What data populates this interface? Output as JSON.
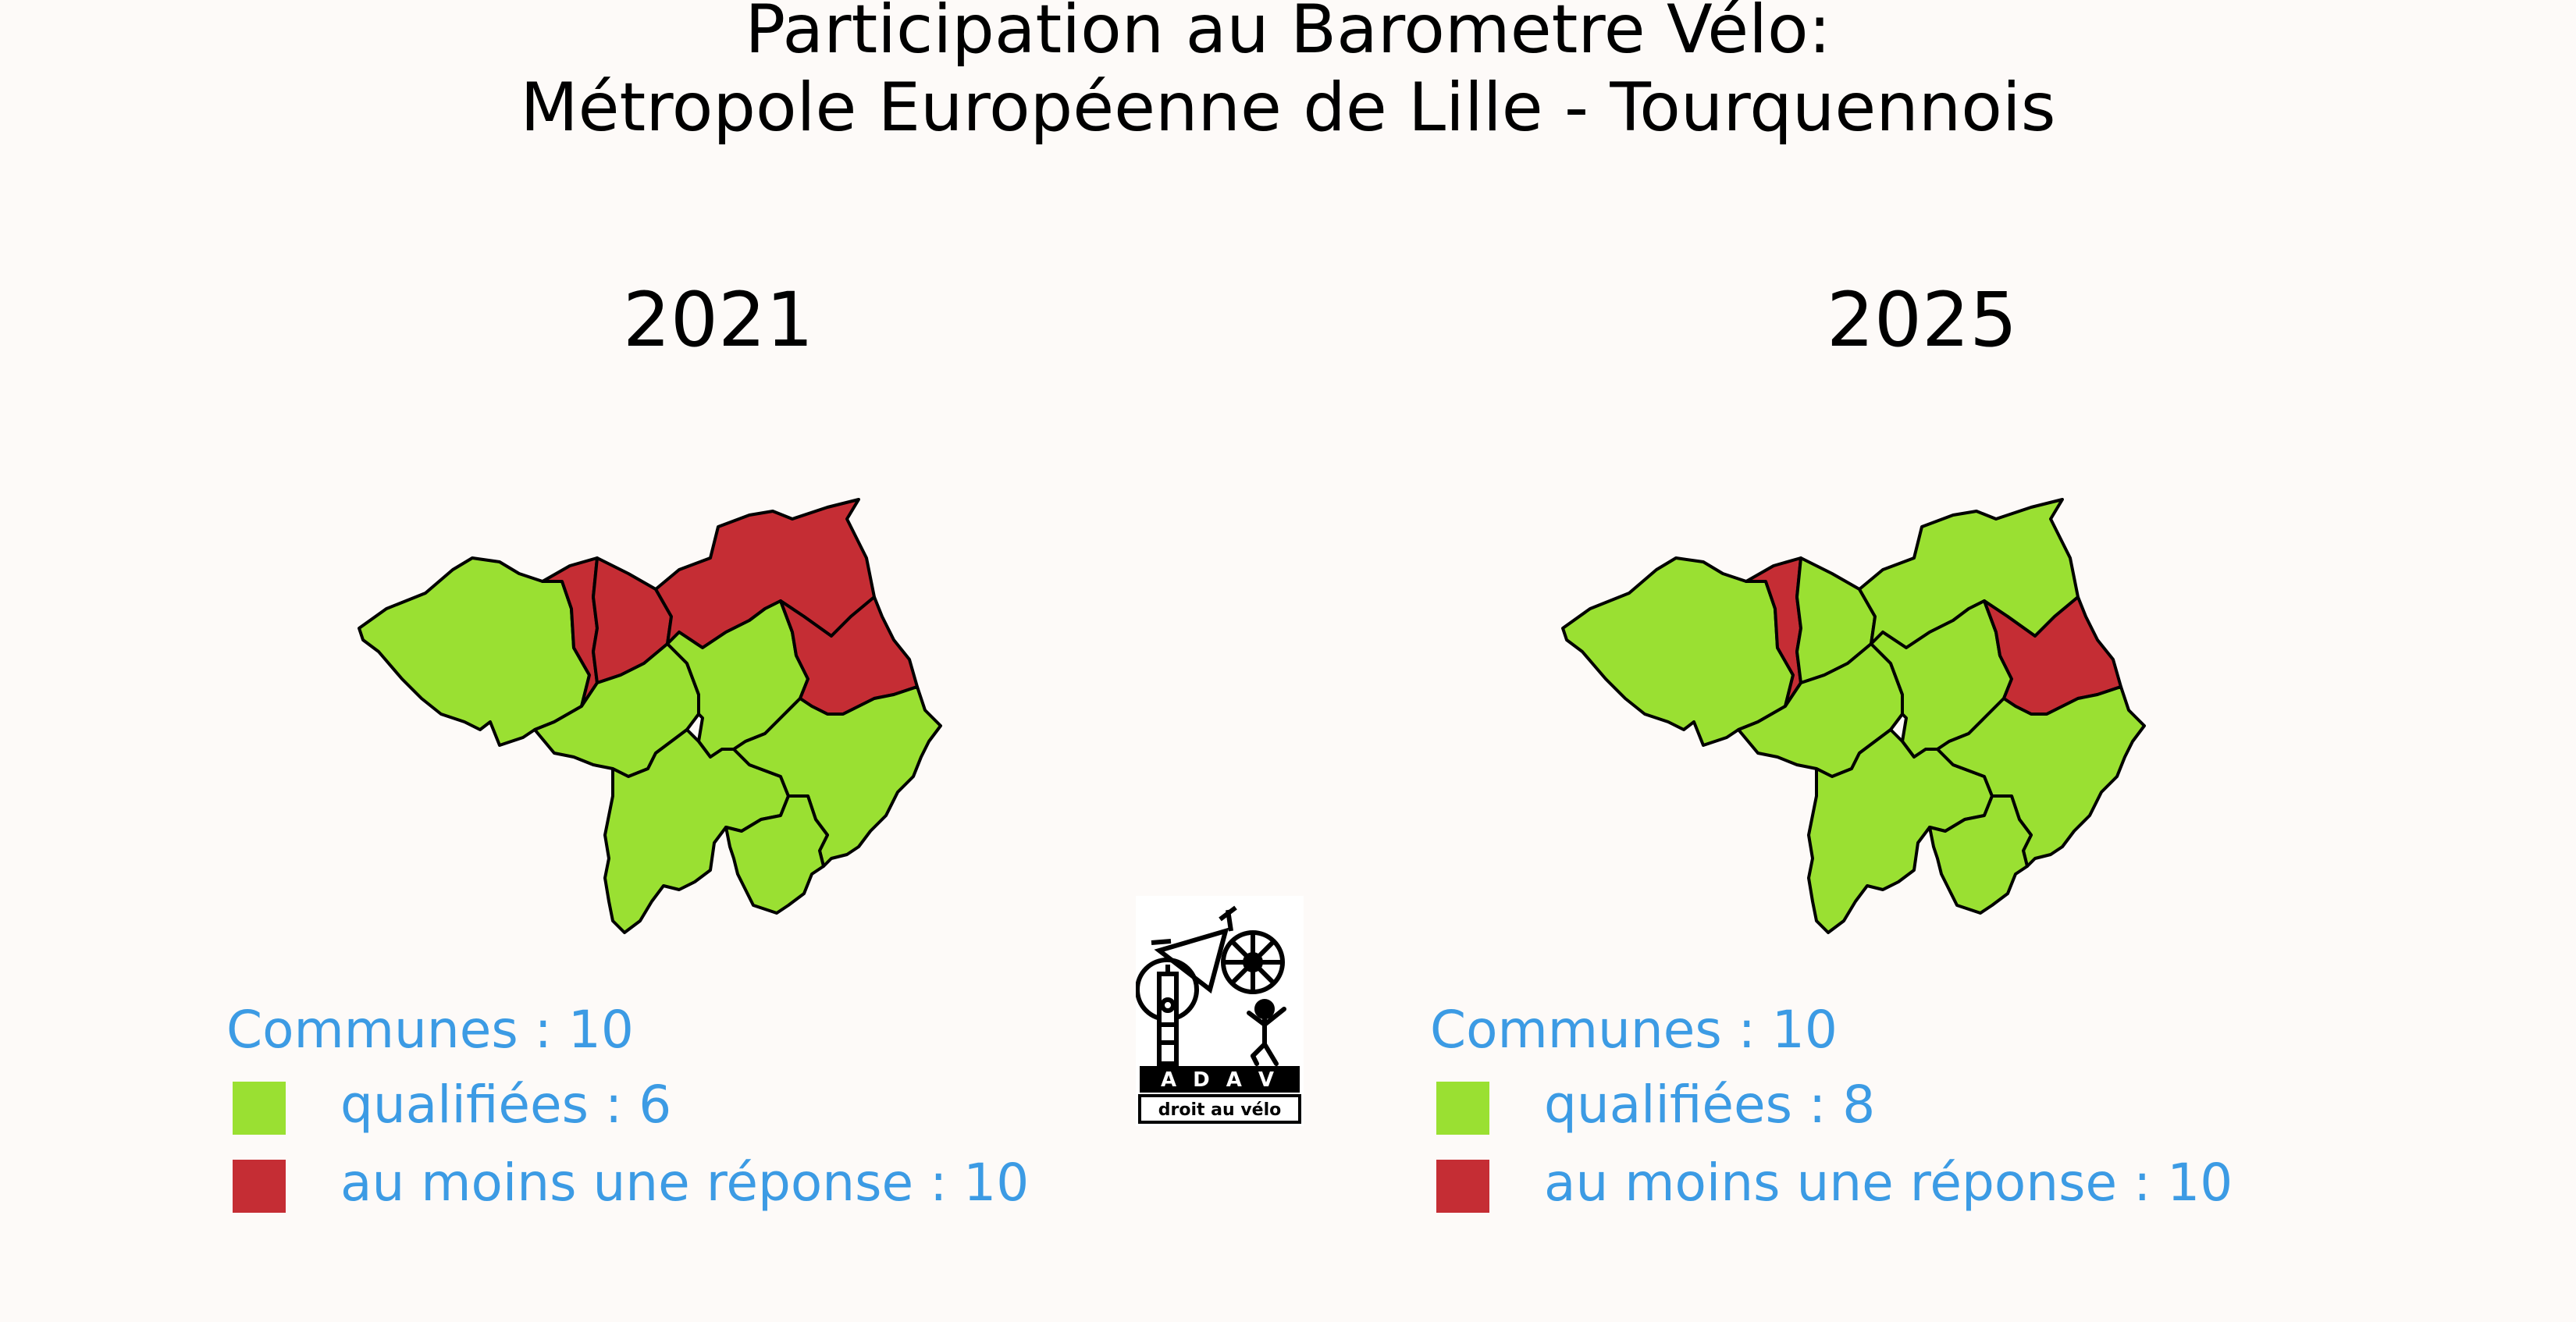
{
  "title": {
    "line1": "Participation au Barometre Vélo:",
    "line2": "Métropole Européenne de Lille - Tourquennois"
  },
  "colors": {
    "background": "#fdfaf8",
    "qualified": "#9ae032",
    "responded": "#c52d34",
    "legend_text": "#3c9be4",
    "border": "#000000"
  },
  "maps": [
    {
      "year": "2021",
      "communes": [
        {
          "id": "A",
          "status": "qualified"
        },
        {
          "id": "B",
          "status": "responded"
        },
        {
          "id": "C",
          "status": "responded"
        },
        {
          "id": "D",
          "status": "responded"
        },
        {
          "id": "E",
          "status": "qualified"
        },
        {
          "id": "F",
          "status": "qualified"
        },
        {
          "id": "G",
          "status": "responded"
        },
        {
          "id": "H",
          "status": "qualified"
        },
        {
          "id": "I",
          "status": "qualified"
        },
        {
          "id": "J",
          "status": "qualified"
        }
      ],
      "legend": {
        "title": "Communes : 10",
        "qualified_label": "qualifiées : 6",
        "responded_label": "au moins une réponse : 10"
      }
    },
    {
      "year": "2025",
      "communes": [
        {
          "id": "A",
          "status": "qualified"
        },
        {
          "id": "B",
          "status": "responded"
        },
        {
          "id": "C",
          "status": "qualified"
        },
        {
          "id": "D",
          "status": "qualified"
        },
        {
          "id": "E",
          "status": "qualified"
        },
        {
          "id": "F",
          "status": "qualified"
        },
        {
          "id": "G",
          "status": "responded"
        },
        {
          "id": "H",
          "status": "qualified"
        },
        {
          "id": "I",
          "status": "qualified"
        },
        {
          "id": "J",
          "status": "qualified"
        }
      ],
      "legend": {
        "title": "Communes : 10",
        "qualified_label": "qualifiées : 8",
        "responded_label": "au moins une réponse : 10"
      }
    }
  ],
  "logo": {
    "acronym": "A D A V",
    "subtitle": "droit au vélo"
  }
}
